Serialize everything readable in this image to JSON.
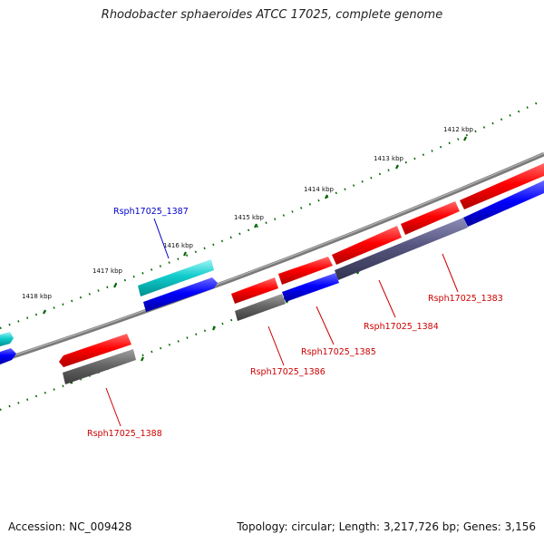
{
  "title": "Rhodobacter sphaeroides ATCC 17025, complete genome",
  "footer": {
    "accession": "Accession: NC_009428",
    "topology": "Topology: circular; Length: 3,217,726 bp; Genes: 3,156"
  },
  "colors": {
    "forward_cds": "#ff0000",
    "reverse_cds": "#0000ff",
    "rna": "#00cccc",
    "gene_gray": "#666666",
    "overlap_purple": "#55557f",
    "backbone": "#808080",
    "tick": "#006600",
    "label_red": "#cc0000",
    "label_blue": "#0000cc"
  },
  "kbp_ticks": [
    {
      "label": "1412 kbp"
    },
    {
      "label": "1413 kbp"
    },
    {
      "label": "1414 kbp"
    },
    {
      "label": "1415 kbp"
    },
    {
      "label": "1416 kbp"
    },
    {
      "label": "1417 kbp"
    },
    {
      "label": "1418 kbp"
    }
  ],
  "gene_labels": [
    {
      "text": "Rsph17025_1387",
      "color": "blue"
    },
    {
      "text": "Rsph17025_1383",
      "color": "red"
    },
    {
      "text": "Rsph17025_1384",
      "color": "red"
    },
    {
      "text": "Rsph17025_1385",
      "color": "red"
    },
    {
      "text": "Rsph17025_1386",
      "color": "red"
    },
    {
      "text": "Rsph17025_1388",
      "color": "red"
    }
  ]
}
